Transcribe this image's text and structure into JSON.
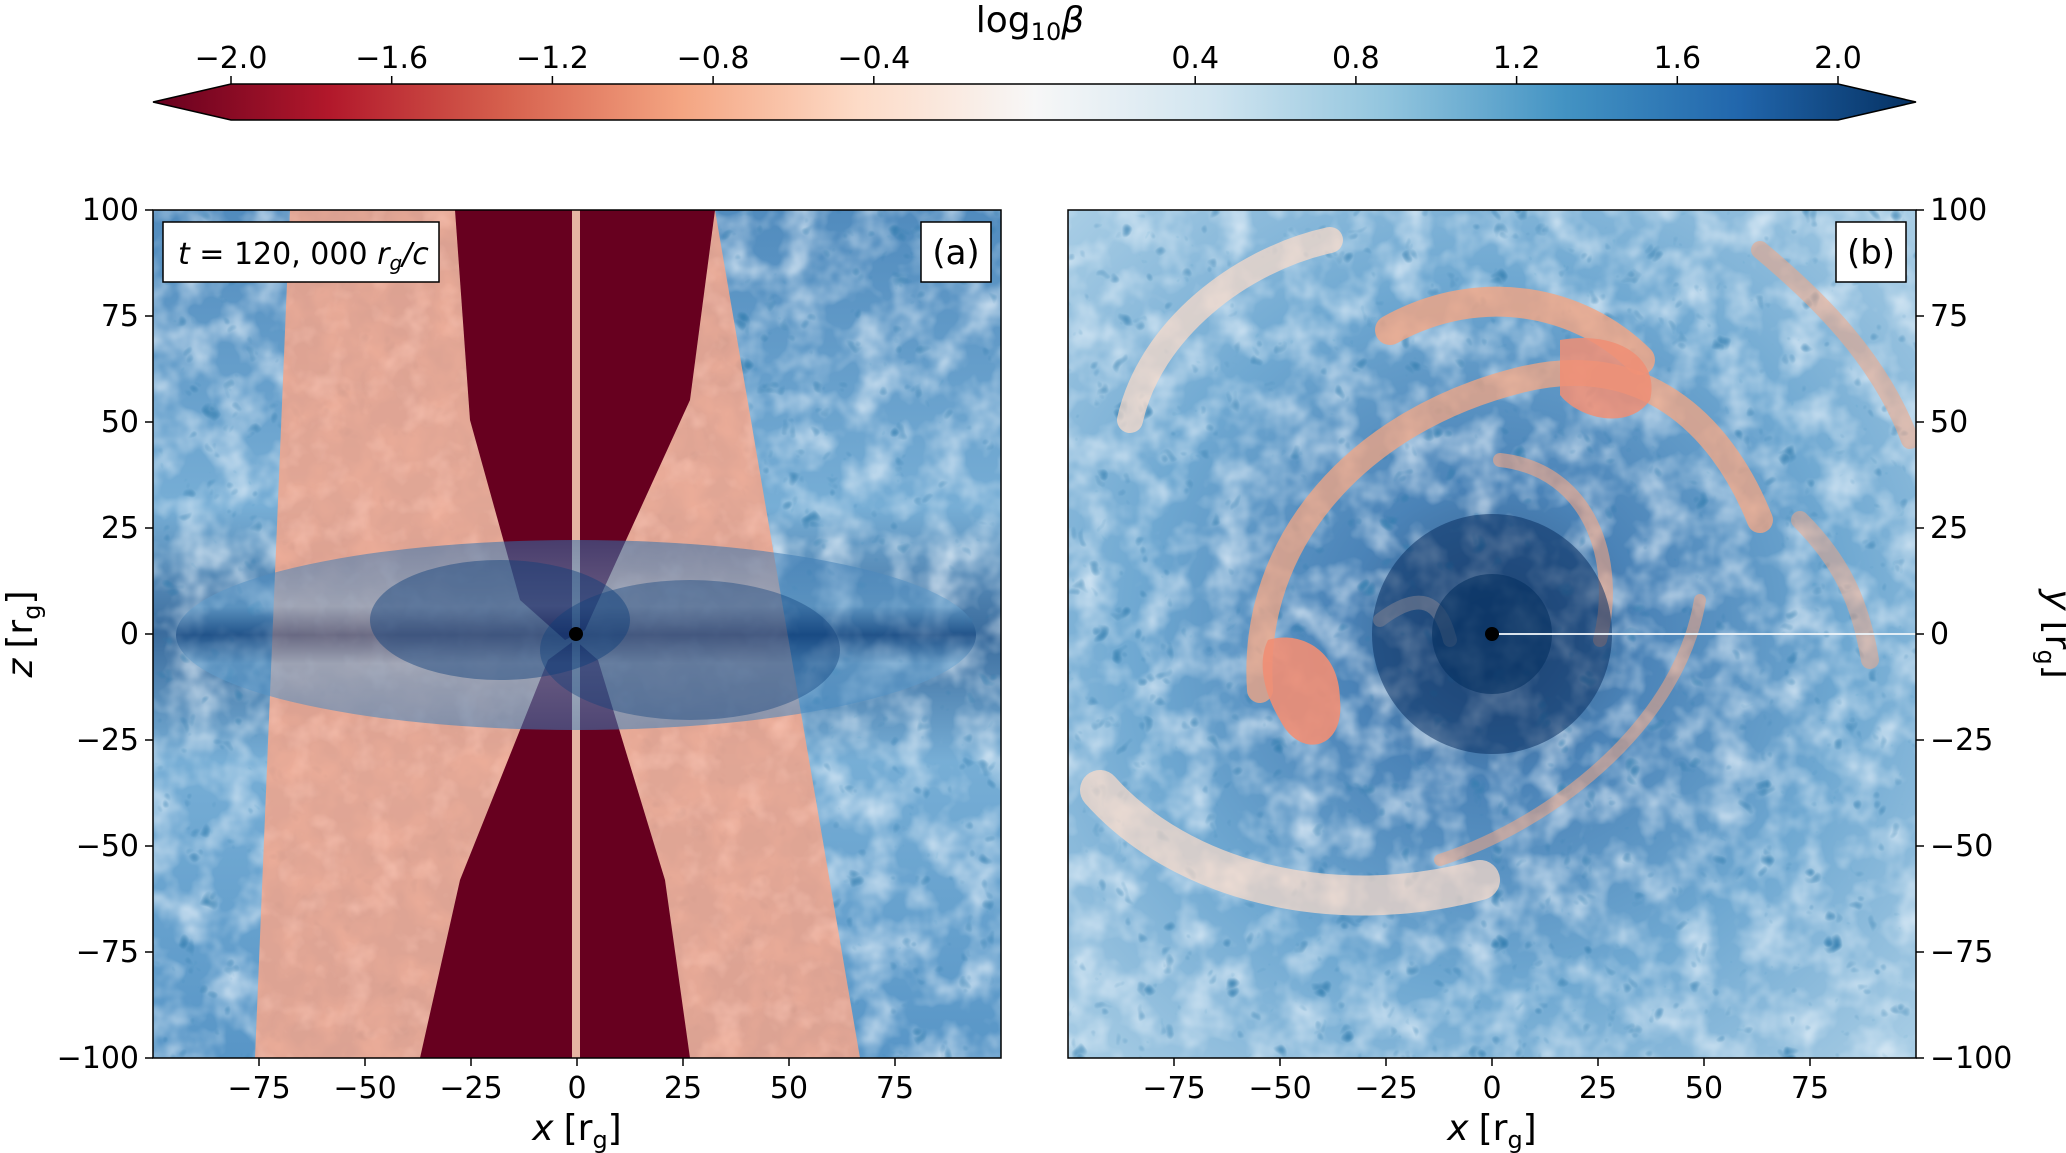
{
  "chart_data": [
    {
      "type": "colorbar",
      "title_text": "log",
      "title_sub": "10",
      "title_sym": "β",
      "range": [
        -2.0,
        2.0
      ],
      "ticks": [
        -2.0,
        -1.6,
        -1.2,
        -0.8,
        -0.4,
        0.4,
        0.8,
        1.2,
        1.6,
        2.0
      ],
      "tick_labels": [
        "−2.0",
        "−1.6",
        "−1.2",
        "−0.8",
        "−0.4",
        "0.4",
        "0.8",
        "1.2",
        "1.6",
        "2.0"
      ],
      "extend": "both",
      "colormap": [
        "#67001f",
        "#b2182b",
        "#d6604d",
        "#f4a582",
        "#fddbc7",
        "#f7f7f7",
        "#d1e5f0",
        "#92c5de",
        "#4393c3",
        "#2166ac",
        "#053061"
      ]
    },
    {
      "type": "heatmap",
      "panel": "(a)",
      "annotation": {
        "t_part": "t",
        "eq_part": " = 120, 000 ",
        "r_part": "r",
        "r_sub": "g",
        "c_part": "/c"
      },
      "xlabel": {
        "var": "x",
        "unit": "[r",
        "unit_sub": "g",
        "close": "]"
      },
      "ylabel": {
        "var": "z",
        "unit": "[r",
        "unit_sub": "g",
        "close": "]"
      },
      "xlim": [
        -100,
        100
      ],
      "ylim": [
        -100,
        100
      ],
      "xticks": [
        -75,
        -50,
        -25,
        0,
        25,
        50,
        75
      ],
      "xtick_labels": [
        "−75",
        "−50",
        "−25",
        "0",
        "25",
        "50",
        "75"
      ],
      "yticks": [
        100,
        75,
        50,
        25,
        0,
        -25,
        -50,
        -75,
        -100
      ],
      "ytick_labels": [
        "100",
        "75",
        "50",
        "25",
        "0",
        "−25",
        "−50",
        "−75",
        "−100"
      ],
      "yaxis_side": "left",
      "description_values": {
        "jet_funnel_log_beta": -2.0,
        "disk_log_beta_range": [
          0.4,
          2.0
        ]
      }
    },
    {
      "type": "heatmap",
      "panel": "(b)",
      "xlabel": {
        "var": "x",
        "unit": "[r",
        "unit_sub": "g",
        "close": "]"
      },
      "ylabel": {
        "var": "y",
        "unit": "[r",
        "unit_sub": "g",
        "close": "]"
      },
      "xlim": [
        -100,
        100
      ],
      "ylim": [
        -100,
        100
      ],
      "xticks": [
        -75,
        -50,
        -25,
        0,
        25,
        50,
        75
      ],
      "xtick_labels": [
        "−75",
        "−50",
        "−25",
        "0",
        "25",
        "50",
        "75"
      ],
      "yticks": [
        100,
        75,
        50,
        25,
        0,
        -25,
        -50,
        -75,
        -100
      ],
      "ytick_labels": [
        "100",
        "75",
        "50",
        "25",
        "0",
        "−25",
        "−50",
        "−75",
        "−100"
      ],
      "yaxis_side": "right"
    }
  ]
}
